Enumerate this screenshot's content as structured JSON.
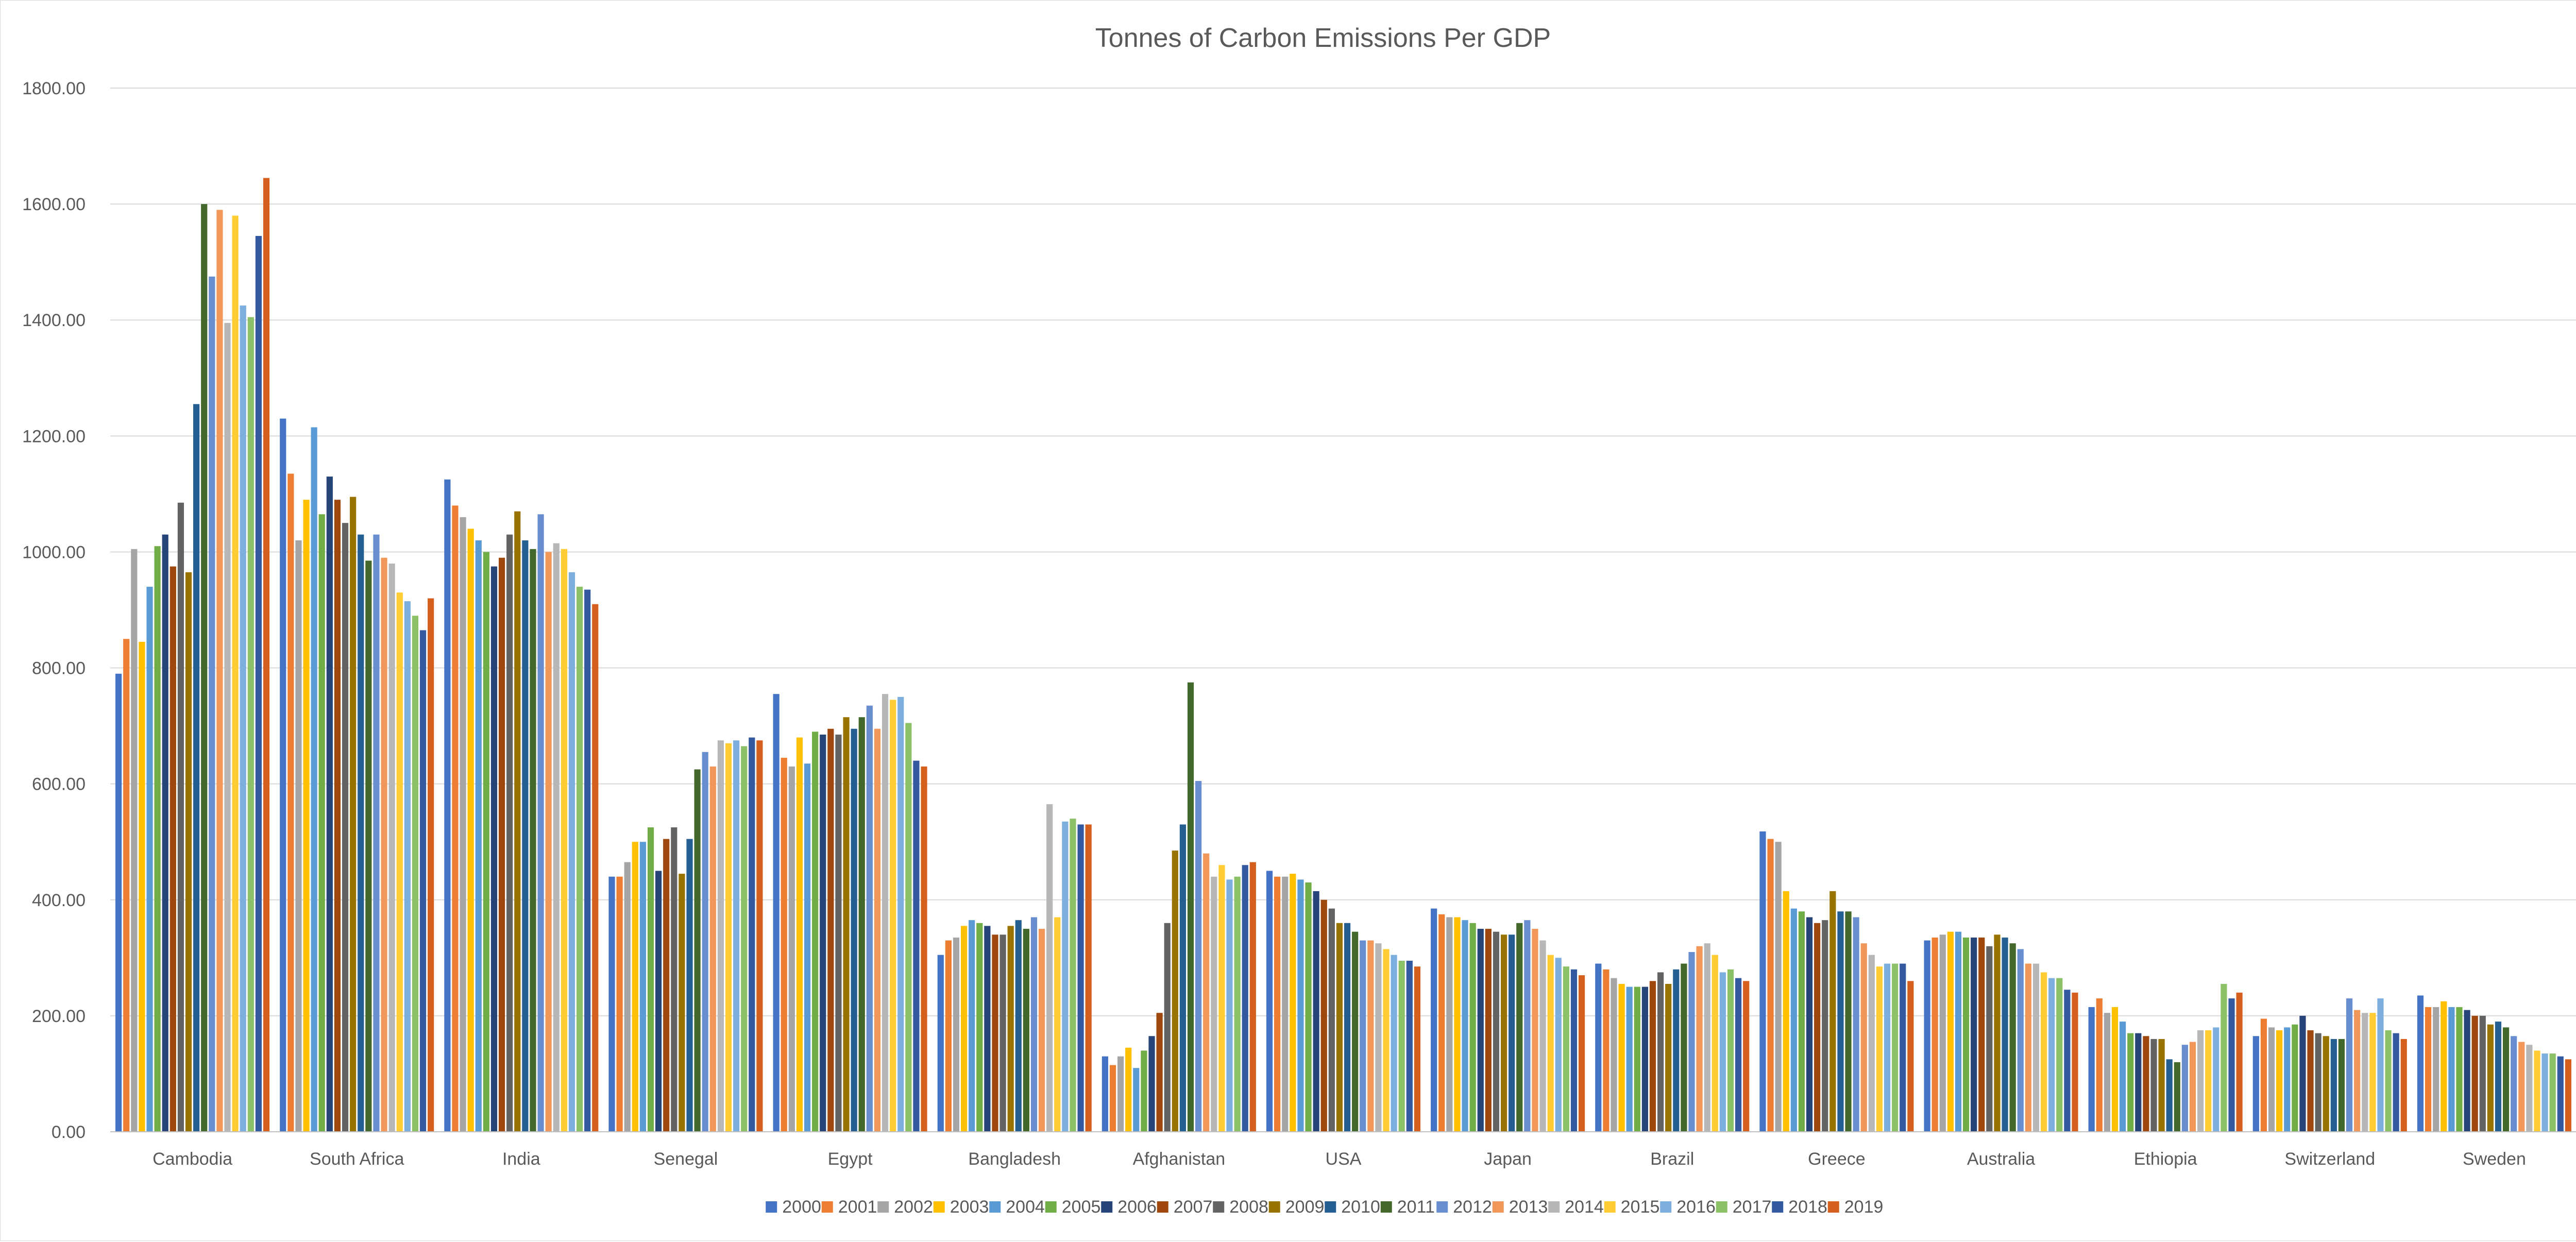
{
  "chart_data": {
    "type": "bar",
    "title": "Tonnes of Carbon Emissions Per GDP",
    "xlabel": "",
    "ylabel": "",
    "ylim": [
      0,
      1800
    ],
    "y_ticks": [
      "0.00",
      "200.00",
      "400.00",
      "600.00",
      "800.00",
      "1000.00",
      "1200.00",
      "1400.00",
      "1600.00",
      "1800.00"
    ],
    "grid": true,
    "legend_position": "bottom",
    "categories": [
      "Cambodia",
      "South Africa",
      "India",
      "Senegal",
      "Egypt",
      "Bangladesh",
      "Afghanistan",
      "USA",
      "Japan",
      "Brazil",
      "Greece",
      "Australia",
      "Ethiopia",
      "Switzerland",
      "Sweden"
    ],
    "series": [
      {
        "name": "2000",
        "color": "#4472C4",
        "values": [
          790,
          1230,
          1125,
          440,
          755,
          305,
          130,
          450,
          385,
          290,
          518,
          330,
          215,
          165,
          235
        ]
      },
      {
        "name": "2001",
        "color": "#ED7D31",
        "values": [
          850,
          1135,
          1080,
          440,
          645,
          330,
          115,
          440,
          375,
          280,
          505,
          335,
          230,
          195,
          215
        ]
      },
      {
        "name": "2002",
        "color": "#A5A5A5",
        "values": [
          1005,
          1020,
          1060,
          465,
          630,
          335,
          130,
          440,
          370,
          265,
          500,
          340,
          205,
          180,
          215
        ]
      },
      {
        "name": "2003",
        "color": "#FFC000",
        "values": [
          845,
          1090,
          1040,
          500,
          680,
          355,
          145,
          445,
          370,
          255,
          415,
          345,
          215,
          175,
          225
        ]
      },
      {
        "name": "2004",
        "color": "#5B9BD5",
        "values": [
          940,
          1215,
          1020,
          500,
          635,
          365,
          110,
          435,
          365,
          250,
          385,
          345,
          190,
          180,
          215
        ]
      },
      {
        "name": "2005",
        "color": "#70AD47",
        "values": [
          1010,
          1065,
          1000,
          525,
          690,
          360,
          140,
          430,
          360,
          250,
          380,
          335,
          170,
          185,
          215
        ]
      },
      {
        "name": "2006",
        "color": "#264478",
        "values": [
          1030,
          1130,
          975,
          450,
          685,
          355,
          165,
          415,
          350,
          250,
          370,
          335,
          170,
          200,
          210
        ]
      },
      {
        "name": "2007",
        "color": "#9E480E",
        "values": [
          975,
          1090,
          990,
          505,
          695,
          340,
          205,
          400,
          350,
          260,
          360,
          335,
          165,
          175,
          200
        ]
      },
      {
        "name": "2008",
        "color": "#636363",
        "values": [
          1085,
          1050,
          1030,
          525,
          685,
          340,
          360,
          385,
          345,
          275,
          365,
          320,
          160,
          170,
          200
        ]
      },
      {
        "name": "2009",
        "color": "#997300",
        "values": [
          965,
          1095,
          1070,
          445,
          715,
          355,
          485,
          360,
          340,
          255,
          415,
          340,
          160,
          165,
          185
        ]
      },
      {
        "name": "2010",
        "color": "#255E91",
        "values": [
          1255,
          1030,
          1020,
          505,
          695,
          365,
          530,
          360,
          340,
          280,
          380,
          335,
          125,
          160,
          190
        ]
      },
      {
        "name": "2011",
        "color": "#43682B",
        "values": [
          1600,
          985,
          1005,
          625,
          715,
          350,
          775,
          345,
          360,
          290,
          380,
          325,
          120,
          160,
          180
        ]
      },
      {
        "name": "2012",
        "color": "#698ED0",
        "values": [
          1475,
          1030,
          1065,
          655,
          735,
          370,
          605,
          330,
          365,
          310,
          370,
          315,
          150,
          230,
          165
        ]
      },
      {
        "name": "2013",
        "color": "#F1975A",
        "values": [
          1590,
          990,
          1000,
          630,
          695,
          350,
          480,
          330,
          350,
          320,
          325,
          290,
          155,
          210,
          155
        ]
      },
      {
        "name": "2014",
        "color": "#B7B7B7",
        "values": [
          1395,
          980,
          1015,
          675,
          755,
          565,
          440,
          325,
          330,
          325,
          305,
          290,
          175,
          205,
          150
        ]
      },
      {
        "name": "2015",
        "color": "#FFCD33",
        "values": [
          1580,
          930,
          1005,
          670,
          745,
          370,
          460,
          315,
          305,
          305,
          285,
          275,
          175,
          205,
          140
        ]
      },
      {
        "name": "2016",
        "color": "#7CAFDD",
        "values": [
          1425,
          915,
          965,
          675,
          750,
          535,
          435,
          305,
          300,
          275,
          290,
          265,
          180,
          230,
          135
        ]
      },
      {
        "name": "2017",
        "color": "#8CC168",
        "values": [
          1405,
          890,
          940,
          665,
          705,
          540,
          440,
          295,
          285,
          280,
          290,
          265,
          255,
          175,
          135
        ]
      },
      {
        "name": "2018",
        "color": "#335AA1",
        "values": [
          1545,
          865,
          935,
          680,
          640,
          530,
          460,
          295,
          280,
          265,
          290,
          245,
          230,
          170,
          130
        ]
      },
      {
        "name": "2019",
        "color": "#D5601E",
        "values": [
          1645,
          920,
          910,
          675,
          630,
          530,
          465,
          285,
          270,
          260,
          260,
          240,
          240,
          160,
          125
        ]
      }
    ]
  }
}
